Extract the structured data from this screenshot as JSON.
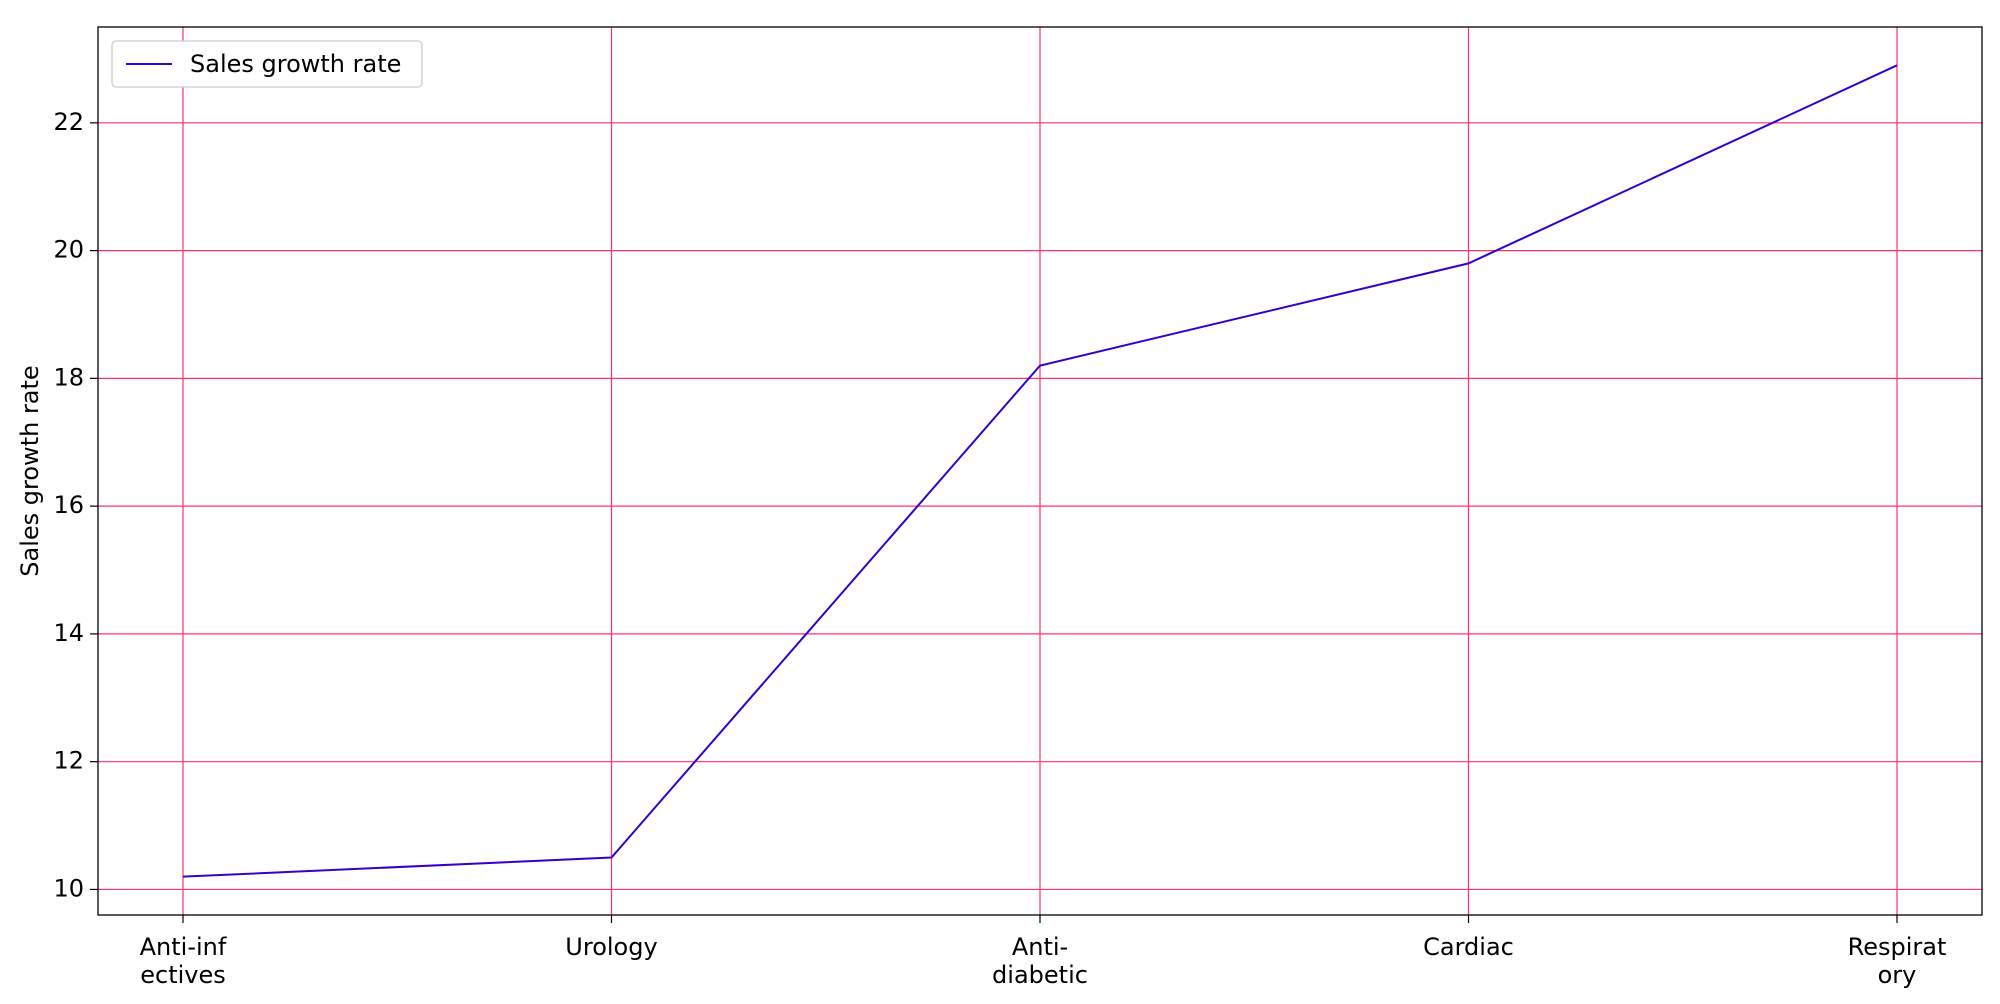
{
  "chart_data": {
    "type": "line",
    "categories": [
      [
        "Anti-inf",
        "ectives"
      ],
      [
        "Urology"
      ],
      [
        "Anti-",
        "diabetic"
      ],
      [
        "Cardiac"
      ],
      [
        "Respirat",
        "ory"
      ]
    ],
    "series": [
      {
        "name": "Sales growth rate",
        "values": [
          10.2,
          10.5,
          18.2,
          19.8,
          22.9
        ],
        "color": "#3300cc"
      }
    ],
    "ylabel": "Sales growth rate",
    "xlabel": "",
    "ylim": [
      9.6,
      23.5
    ],
    "yticks": [
      10,
      12,
      14,
      16,
      18,
      20,
      22
    ],
    "grid": true,
    "grid_color": "#ff3366",
    "legend": {
      "position": "top-left"
    }
  }
}
